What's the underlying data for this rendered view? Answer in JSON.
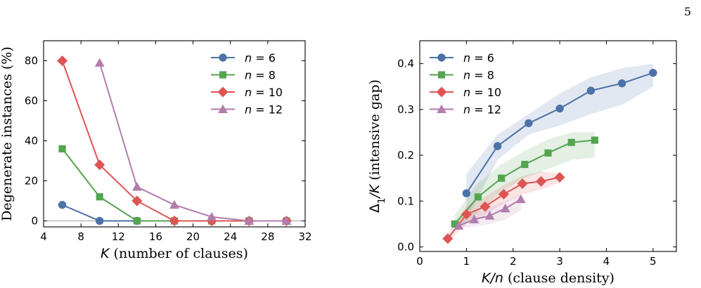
{
  "page_number": "5",
  "colors": {
    "n6": "#4c72a8",
    "n8": "#55a450",
    "n10": "#de5454",
    "n12": "#b27dac"
  },
  "chart_data": [
    {
      "type": "line",
      "xlabel": "K (number of clauses)",
      "ylabel": "Degenerate instances (%)",
      "xlim": [
        4,
        32
      ],
      "ylim": [
        -3,
        90
      ],
      "xticks": [
        4,
        8,
        12,
        16,
        20,
        24,
        28,
        32
      ],
      "yticks": [
        0,
        20,
        40,
        60,
        80
      ],
      "hline": 0,
      "grid": false,
      "legend_position": "top-right",
      "series": [
        {
          "name": "n = 6",
          "marker": "circle",
          "color": "#4c72a8",
          "x": [
            6,
            10,
            14,
            18,
            22,
            26,
            30
          ],
          "y": [
            8,
            0,
            0,
            0,
            0,
            0,
            0
          ]
        },
        {
          "name": "n = 8",
          "marker": "square",
          "color": "#55a450",
          "x": [
            6,
            10,
            14,
            18,
            22,
            26,
            30
          ],
          "y": [
            36,
            12,
            0,
            0,
            0,
            0,
            0
          ]
        },
        {
          "name": "n = 10",
          "marker": "diamond",
          "color": "#de5454",
          "x": [
            6,
            10,
            14,
            18,
            22,
            26,
            30
          ],
          "y": [
            80,
            28,
            10,
            0,
            0,
            0,
            0
          ]
        },
        {
          "name": "n = 12",
          "marker": "triangle",
          "color": "#b27dac",
          "x": [
            10,
            14,
            18,
            22,
            26,
            30
          ],
          "y": [
            79,
            17,
            8,
            2,
            0,
            0
          ]
        }
      ]
    },
    {
      "type": "line",
      "xlabel": "K/n (clause density)",
      "ylabel": "Δ1/K (intensive gap)",
      "xlim": [
        0,
        5.5
      ],
      "ylim": [
        -0.01,
        0.45
      ],
      "xticks": [
        0,
        1,
        2,
        3,
        4,
        5
      ],
      "yticks": [
        0.0,
        0.1,
        0.2,
        0.3,
        0.4
      ],
      "grid": false,
      "legend_position": "top-left",
      "series": [
        {
          "name": "n = 6",
          "marker": "circle",
          "color": "#4c72a8",
          "x": [
            1.0,
            1.667,
            2.333,
            3.0,
            3.667,
            4.333,
            5.0
          ],
          "y": [
            0.117,
            0.22,
            0.27,
            0.302,
            0.341,
            0.357,
            0.38
          ],
          "band_low": [
            0.06,
            0.19,
            0.245,
            0.265,
            0.29,
            0.31,
            0.35
          ],
          "band_high": [
            0.16,
            0.245,
            0.29,
            0.335,
            0.37,
            0.39,
            0.4
          ]
        },
        {
          "name": "n = 8",
          "marker": "square",
          "color": "#55a450",
          "x": [
            0.75,
            1.25,
            1.75,
            2.25,
            2.75,
            3.25,
            3.75
          ],
          "y": [
            0.05,
            0.109,
            0.15,
            0.18,
            0.205,
            0.228,
            0.233
          ],
          "band_low": [
            0.035,
            0.075,
            0.12,
            0.15,
            0.17,
            0.19,
            0.195
          ],
          "band_high": [
            0.07,
            0.14,
            0.18,
            0.21,
            0.235,
            0.25,
            0.25
          ]
        },
        {
          "name": "n = 10",
          "marker": "diamond",
          "color": "#de5454",
          "x": [
            0.6,
            1.0,
            1.4,
            1.8,
            2.2,
            2.6,
            3.0
          ],
          "y": [
            0.018,
            0.071,
            0.088,
            0.115,
            0.138,
            0.143,
            0.152
          ],
          "band_low": [
            0.01,
            0.05,
            0.07,
            0.095,
            0.115,
            0.125,
            0.14
          ],
          "band_high": [
            0.03,
            0.09,
            0.11,
            0.135,
            0.155,
            0.165,
            0.16
          ]
        },
        {
          "name": "n = 12",
          "marker": "triangle",
          "color": "#b27dac",
          "x": [
            0.833,
            1.167,
            1.5,
            1.833,
            2.167
          ],
          "y": [
            0.046,
            0.06,
            0.068,
            0.084,
            0.104
          ],
          "band_low": [
            0.04,
            0.045,
            0.05,
            0.06,
            0.08
          ],
          "band_high": [
            0.055,
            0.075,
            0.085,
            0.1,
            0.115
          ]
        }
      ]
    }
  ]
}
